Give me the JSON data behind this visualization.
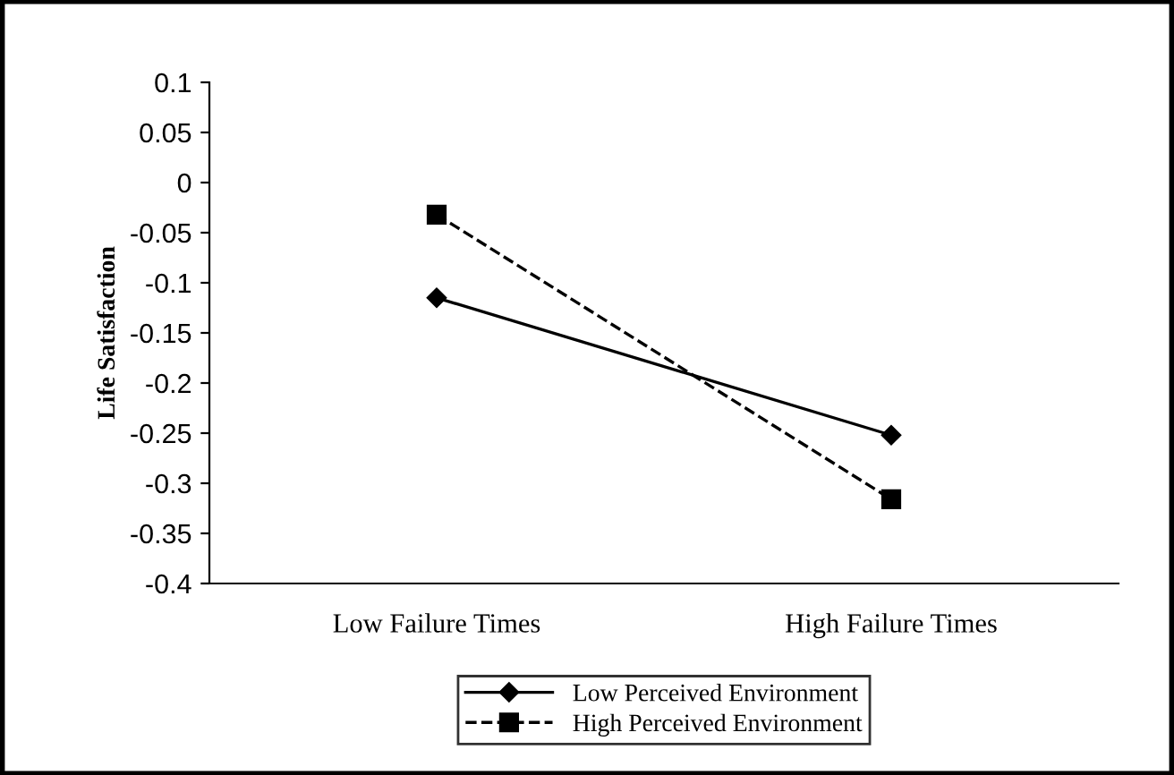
{
  "chart_data": {
    "type": "line",
    "ylabel": "Life Satisfaction",
    "categories": [
      "Low Failure Times",
      "High Failure Times"
    ],
    "series": [
      {
        "name": "Low Perceived Environment",
        "color": "#000000",
        "values": [
          -0.115,
          -0.252
        ],
        "marker": "diamond",
        "line_style": "solid"
      },
      {
        "name": "High Perceived Environment",
        "color": "#000000",
        "values": [
          -0.032,
          -0.316
        ],
        "marker": "square",
        "line_style": "dashed"
      }
    ],
    "ylim": [
      -0.4,
      0.1
    ],
    "yticks": [
      {
        "value": -0.4,
        "label": "-0.4"
      },
      {
        "value": -0.35,
        "label": "-0.35"
      },
      {
        "value": -0.3,
        "label": "-0.3"
      },
      {
        "value": -0.25,
        "label": "-0.25"
      },
      {
        "value": -0.2,
        "label": "-0.2"
      },
      {
        "value": -0.15,
        "label": "-0.15"
      },
      {
        "value": -0.1,
        "label": "-0.1"
      },
      {
        "value": -0.05,
        "label": "-0.05"
      },
      0,
      0.05,
      0.1
    ],
    "grid": false,
    "legend": "bottom"
  }
}
